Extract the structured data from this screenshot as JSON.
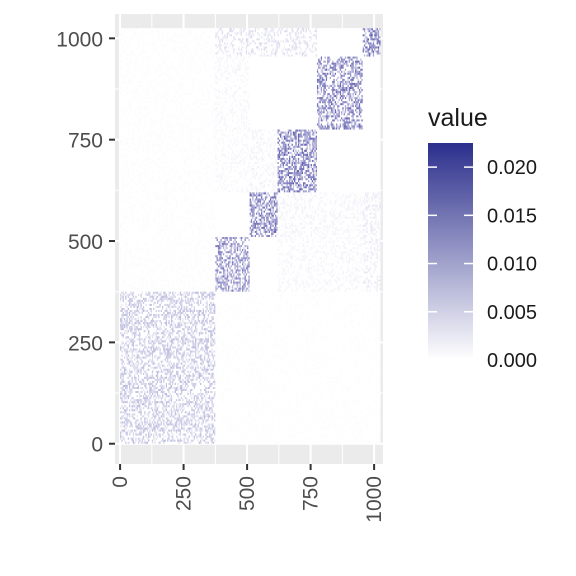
{
  "chart_data": {
    "type": "heatmap",
    "title": "",
    "xlabel": "",
    "ylabel": "",
    "xlim": [
      -20,
      1035
    ],
    "ylim": [
      -50,
      1060
    ],
    "x_ticks": [
      0,
      250,
      500,
      750,
      1000
    ],
    "x_tick_labels": [
      "0",
      "250",
      "500",
      "750",
      "1000"
    ],
    "y_ticks": [
      0,
      250,
      500,
      750,
      1000
    ],
    "y_tick_labels": [
      "0",
      "250",
      "500",
      "750",
      "1000"
    ],
    "grid": true,
    "legend": {
      "title": "value",
      "position": "right",
      "min": 0.0,
      "max": 0.0225,
      "breaks": [
        0.0,
        0.005,
        0.01,
        0.015,
        0.02
      ],
      "break_labels": [
        "0.000",
        "0.005",
        "0.010",
        "0.015",
        "0.020"
      ],
      "low_color": "#ffffff",
      "high_color": "#2c2f8c"
    },
    "cell_color": "#3c3a9e",
    "blocks": [
      {
        "start": 0,
        "end": 375,
        "intensity": 0.35,
        "density": 0.5
      },
      {
        "start": 375,
        "end": 510,
        "intensity": 0.7,
        "density": 0.55
      },
      {
        "start": 510,
        "end": 620,
        "intensity": 0.8,
        "density": 0.6
      },
      {
        "start": 620,
        "end": 775,
        "intensity": 0.85,
        "density": 0.6
      },
      {
        "start": 775,
        "end": 955,
        "intensity": 0.8,
        "density": 0.55
      },
      {
        "start": 955,
        "end": 1025,
        "intensity": 0.85,
        "density": 0.6
      }
    ],
    "offdiagonal": [
      {
        "x": [
          375,
          775
        ],
        "y": [
          955,
          1025
        ],
        "intensity": 0.2
      },
      {
        "x": [
          375,
          510
        ],
        "y": [
          775,
          955
        ],
        "intensity": 0.06
      },
      {
        "x": [
          375,
          510
        ],
        "y": [
          620,
          775
        ],
        "intensity": 0.05
      },
      {
        "x": [
          510,
          620
        ],
        "y": [
          620,
          775
        ],
        "intensity": 0.08
      },
      {
        "x": [
          620,
          775
        ],
        "y": [
          510,
          620
        ],
        "intensity": 0.08
      },
      {
        "x": [
          955,
          1025
        ],
        "y": [
          375,
          620
        ],
        "intensity": 0.12
      },
      {
        "x": [
          775,
          955
        ],
        "y": [
          375,
          620
        ],
        "intensity": 0.07
      },
      {
        "x": [
          620,
          775
        ],
        "y": [
          375,
          510
        ],
        "intensity": 0.06
      },
      {
        "x": [
          0,
          375
        ],
        "y": [
          375,
          1025
        ],
        "intensity": 0.02
      },
      {
        "x": [
          375,
          1025
        ],
        "y": [
          0,
          375
        ],
        "intensity": 0.015
      }
    ]
  }
}
